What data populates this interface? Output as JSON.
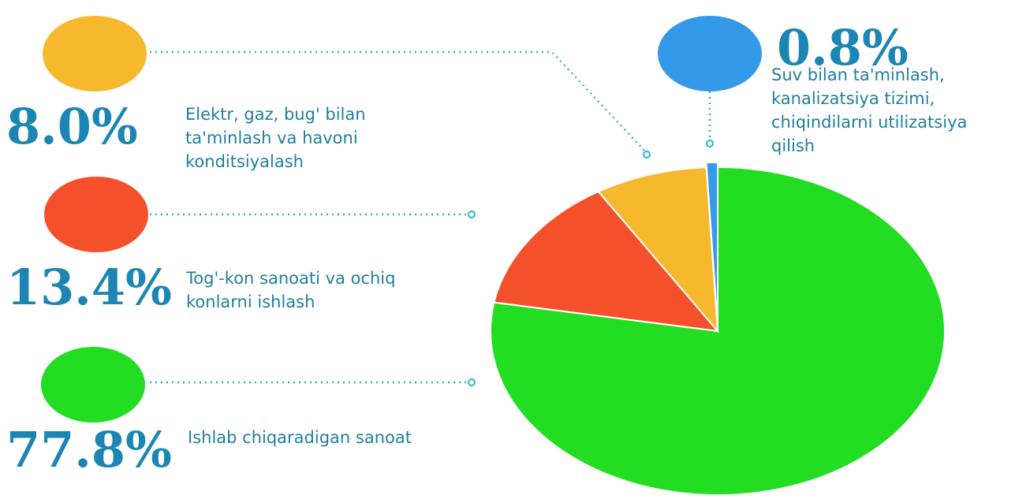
{
  "chart_data": {
    "type": "pie",
    "categories": [
      "Ishlab chiqaradigan sanoat",
      "Tog'-kon sanoati va ochiq\nkonlarni ishlash",
      "Elektr, gaz, bug' bilan\nta'minlash va havoni\nkonditsiyalash",
      "Suv bilan ta'minlash,\nkanalizatsiya tizimi,\nchiqindilarni utilizatsiya\nqilish"
    ],
    "values": [
      77.8,
      13.4,
      8.0,
      0.8
    ],
    "value_labels": [
      "77.8%",
      "13.4%",
      "8.0%",
      "0.8%"
    ],
    "colors": [
      "#22dd22",
      "#f5502c",
      "#f6b82c",
      "#3399e8"
    ]
  }
}
